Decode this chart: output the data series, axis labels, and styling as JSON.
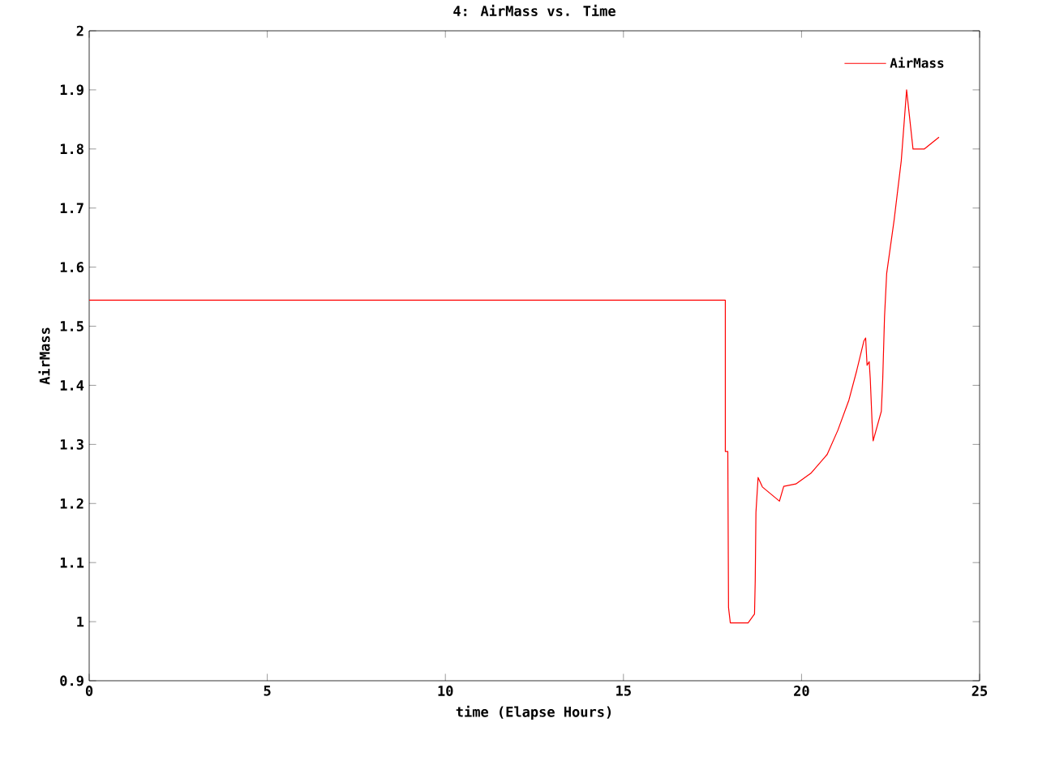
{
  "chart_data": {
    "type": "line",
    "title": "4: AirMass vs. Time",
    "xlabel": "time (Elapse Hours)",
    "ylabel": "AirMass",
    "xlim": [
      0,
      25
    ],
    "ylim": [
      0.9,
      2
    ],
    "xticks": [
      0,
      5,
      10,
      15,
      20,
      25
    ],
    "yticks": [
      0.9,
      1,
      1.1,
      1.2,
      1.3,
      1.4,
      1.5,
      1.6,
      1.7,
      1.8,
      1.9,
      2
    ],
    "legend": "top right",
    "grid": false,
    "series": [
      {
        "name": "AirMass",
        "color": "#ff0000",
        "x": [
          0,
          17.86,
          17.86,
          17.93,
          17.95,
          18.0,
          18.5,
          18.68,
          18.7,
          18.72,
          18.78,
          18.9,
          19.38,
          19.5,
          19.84,
          20.26,
          20.72,
          21.02,
          21.33,
          21.55,
          21.75,
          21.8,
          21.84,
          21.9,
          21.93,
          21.98,
          22.01,
          22.24,
          22.28,
          22.33,
          22.39,
          22.6,
          22.8,
          22.95,
          23.13,
          23.45,
          23.86
        ],
        "values": [
          1.544,
          1.544,
          1.288,
          1.288,
          1.024,
          0.998,
          0.998,
          1.013,
          1.07,
          1.185,
          1.244,
          1.228,
          1.204,
          1.229,
          1.233,
          1.251,
          1.283,
          1.324,
          1.375,
          1.425,
          1.475,
          1.48,
          1.434,
          1.44,
          1.411,
          1.338,
          1.306,
          1.356,
          1.411,
          1.516,
          1.589,
          1.68,
          1.78,
          1.9,
          1.8,
          1.8,
          1.82
        ]
      }
    ]
  }
}
